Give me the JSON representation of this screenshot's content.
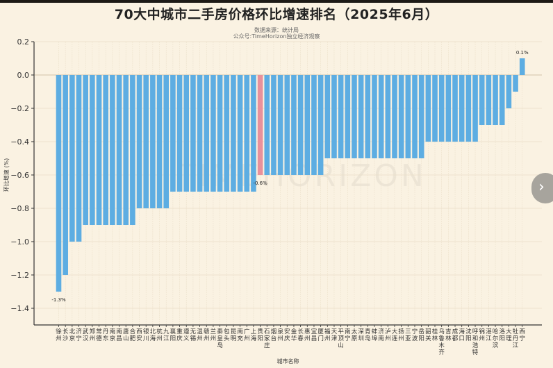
{
  "header": {
    "title": "70大中城市二手房价格环比增速排名（2025年6月）",
    "source": "数据来源：统计局",
    "account": "公众号:TimeHorizon独立经济观察"
  },
  "watermark": "TIMEHORIZON",
  "nav": {
    "next_icon": "chevron-right-icon",
    "next_glyph": "›"
  },
  "colors": {
    "bar": "#5dade2",
    "highlight": "#e9919b",
    "background": "#faf2e2"
  },
  "chart_data": {
    "type": "bar",
    "title": "70大中城市二手房价格环比增速排名（2025年6月）",
    "xlabel": "城市名称",
    "ylabel": "环比增速 (%)",
    "ylim": [
      -1.5,
      0.2
    ],
    "yticks": [
      0.2,
      0.0,
      -0.2,
      -0.4,
      -0.6,
      -0.8,
      -1.0,
      -1.2,
      -1.4
    ],
    "grid": true,
    "highlight_category": "贵阳",
    "annotations": [
      {
        "category": "徐州",
        "text": "-1.3%"
      },
      {
        "category": "贵阳",
        "text": "-0.6%"
      },
      {
        "category": "西宁",
        "text": "0.1%"
      }
    ],
    "categories": [
      "徐州",
      "长沙",
      "北京",
      "济宁",
      "武汉",
      "郑州",
      "常德",
      "丹东",
      "南京",
      "南昌",
      "唐山",
      "合肥",
      "西安",
      "银川",
      "北海",
      "杭州",
      "九江",
      "襄阳",
      "重庆",
      "遵义",
      "无锡",
      "温州",
      "赣州",
      "兰州",
      "秦皇岛",
      "包头",
      "昆明",
      "南充",
      "广州",
      "上海",
      "贵阳",
      "石家庄",
      "烟台",
      "泉州",
      "安庆",
      "金华",
      "长春",
      "惠州",
      "宜昌",
      "厦门",
      "福州",
      "天津",
      "平顶山",
      "南宁",
      "太原",
      "深圳",
      "青岛",
      "蚌埠",
      "济南",
      "泸州",
      "大连",
      "扬州",
      "三亚",
      "宁波",
      "岳阳",
      "韶关",
      "桂林",
      "乌鲁木齐",
      "吉林",
      "成都",
      "海口",
      "沈阳",
      "呼和浩特",
      "锦州",
      "湛江",
      "哈尔滨",
      "洛阳",
      "大理",
      "牡丹江",
      "西宁"
    ],
    "values": [
      -1.3,
      -1.2,
      -1.0,
      -1.0,
      -0.9,
      -0.9,
      -0.9,
      -0.9,
      -0.9,
      -0.9,
      -0.9,
      -0.9,
      -0.8,
      -0.8,
      -0.8,
      -0.8,
      -0.8,
      -0.7,
      -0.7,
      -0.7,
      -0.7,
      -0.7,
      -0.7,
      -0.7,
      -0.7,
      -0.7,
      -0.7,
      -0.7,
      -0.7,
      -0.7,
      -0.6,
      -0.6,
      -0.6,
      -0.6,
      -0.6,
      -0.6,
      -0.6,
      -0.6,
      -0.6,
      -0.6,
      -0.5,
      -0.5,
      -0.5,
      -0.5,
      -0.5,
      -0.5,
      -0.5,
      -0.5,
      -0.5,
      -0.5,
      -0.5,
      -0.5,
      -0.5,
      -0.5,
      -0.5,
      -0.4,
      -0.4,
      -0.4,
      -0.4,
      -0.4,
      -0.4,
      -0.4,
      -0.4,
      -0.3,
      -0.3,
      -0.3,
      -0.3,
      -0.2,
      -0.1,
      0.1
    ]
  }
}
